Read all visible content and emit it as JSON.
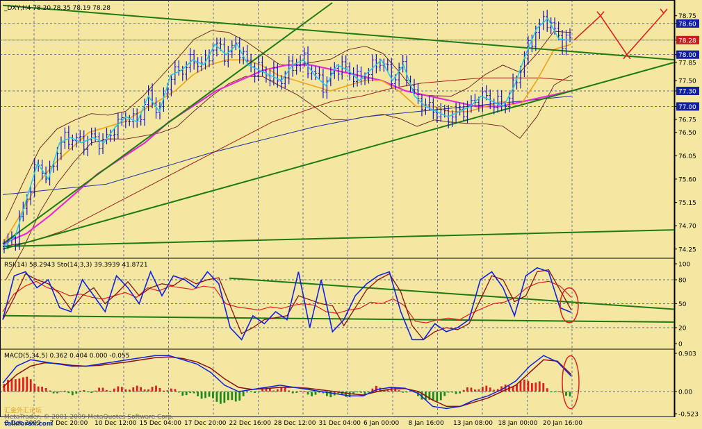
{
  "colors": {
    "background": "#F3E7A1",
    "grid": "#3A3A8A",
    "candles": "#1010D0",
    "fast_ma": "#22C8E8",
    "ma_orange": "#F2A21A",
    "ma_magenta": "#E82BD3",
    "ma_brown": "#A0201A",
    "ma_blue": "#2030A0",
    "bands": "#6A1A1A",
    "trendline": "#1E7A10",
    "projection": "#E02020",
    "price_tag": "#1020A0",
    "current_tag": "#C02020",
    "rsi_line": "#E02020",
    "stoch_main": "#1020E0",
    "stoch_signal": "#8A1010",
    "macd_main": "#1020E0",
    "macd_signal": "#8A1010",
    "hist_up": "#E02020",
    "hist_down": "#1E8A1E",
    "circle": "#E02020"
  },
  "chart_data": [
    {
      "type": "line",
      "title": "_DXY,H4  78.20 78.35 78.19 78.28",
      "ylim": [
        74.1,
        79.0
      ],
      "y_ticks": [
        "78.75",
        "78.60",
        "78.28",
        "78.00",
        "77.85",
        "77.50",
        "77.30",
        "77.00",
        "76.75",
        "76.50",
        "76.05",
        "75.60",
        "75.15",
        "74.70",
        "74.25"
      ],
      "highlighted_ticks": [
        "78.60",
        "78.28",
        "78.00",
        "77.30",
        "77.00"
      ],
      "current_price": "78.28",
      "x_tick_labels": [
        "3 Dec 2009",
        "7 Dec 20:00",
        "10 Dec 12:00",
        "15 Dec 04:00",
        "17 Dec 20:00",
        "22 Dec 16:00",
        "28 Dec 12:00",
        "31 Dec 04:00",
        "6 Jan 00:00",
        "8 Jan 16:00",
        "13 Jan 08:00",
        "18 Jan 00:00",
        "20 Jan 16:00"
      ],
      "close_path": [
        74.3,
        74.5,
        75.2,
        75.9,
        75.6,
        76.3,
        76.4,
        76.3,
        76.4,
        76.3,
        76.6,
        76.8,
        76.7,
        77.2,
        76.9,
        77.6,
        77.7,
        77.9,
        77.8,
        78.2,
        78.0,
        78.2,
        77.8,
        77.7,
        77.6,
        77.5,
        77.8,
        77.9,
        77.6,
        77.4,
        77.8,
        77.7,
        77.5,
        77.7,
        77.9,
        77.5,
        77.8,
        77.2,
        77.0,
        76.9,
        76.8,
        76.9,
        77.0,
        77.2,
        77.1,
        77.0,
        77.4,
        78.0,
        78.5,
        78.7,
        78.3,
        78.28
      ],
      "projection_path": [
        78.28,
        78.75,
        78.0,
        78.8
      ],
      "series": [
        {
          "name": "",
          "values": [
            74.35,
            74.9,
            75.5,
            75.9,
            76.2,
            76.5,
            76.6,
            76.7,
            76.9,
            77.1,
            77.3,
            77.6,
            77.8,
            77.9,
            77.9,
            77.8,
            77.6,
            77.5,
            77.4,
            77.3,
            77.4,
            77.5,
            77.5,
            77.3,
            77.0,
            77.0,
            76.9,
            76.9,
            77.0,
            77.1,
            77.0,
            77.5,
            78.1,
            78.2
          ]
        },
        {
          "name": "",
          "values": [
            74.35,
            74.55,
            74.9,
            75.3,
            75.7,
            76.0,
            76.3,
            76.7,
            77.0,
            77.3,
            77.5,
            77.7,
            77.8,
            77.8,
            77.7,
            77.6,
            77.5,
            77.3,
            77.2,
            77.1,
            77.0,
            77.0,
            77.1,
            77.2,
            77.3
          ]
        },
        {
          "name": "",
          "values": [
            74.3,
            74.4,
            74.6,
            74.9,
            75.2,
            75.5,
            75.8,
            76.1,
            76.4,
            76.7,
            76.9,
            77.1,
            77.2,
            77.35,
            77.45,
            77.5,
            77.55,
            77.55,
            77.55,
            77.5
          ]
        },
        {
          "name": "",
          "values": [
            75.3,
            75.4,
            75.5,
            75.8,
            76.1,
            76.35,
            76.6,
            76.8,
            76.9,
            77.0,
            77.1,
            77.2
          ]
        }
      ]
    },
    {
      "type": "line",
      "title": "RSI(14) 58.2943  Sto(14,3,3) 39.3939 41.8721",
      "ylim": [
        0,
        100
      ],
      "y_ticks": [
        "100",
        "80",
        "50",
        "20",
        "0"
      ],
      "series": [
        {
          "name": "RSI(14)",
          "values": [
            40,
            62,
            72,
            78,
            70,
            66,
            60,
            62,
            58,
            56,
            60,
            64,
            58,
            70,
            66,
            72,
            70,
            68,
            72,
            70,
            50,
            46,
            44,
            42,
            46,
            44,
            48,
            50,
            48,
            40,
            38,
            42,
            44,
            52,
            50,
            56,
            48,
            28,
            26,
            30,
            32,
            30,
            38,
            44,
            50,
            52,
            58,
            70,
            76,
            78,
            72,
            58
          ]
        },
        {
          "name": "Sto(14,3,3)",
          "values": [
            30,
            85,
            90,
            70,
            80,
            45,
            40,
            80,
            60,
            40,
            85,
            70,
            50,
            90,
            60,
            85,
            80,
            70,
            90,
            75,
            20,
            5,
            35,
            25,
            40,
            30,
            90,
            20,
            80,
            15,
            30,
            60,
            75,
            85,
            90,
            40,
            5,
            5,
            25,
            15,
            20,
            30,
            80,
            90,
            70,
            35,
            85,
            95,
            90,
            45,
            39
          ]
        }
      ]
    },
    {
      "type": "bar",
      "title": "MACD(5,34,5)  0.362 0.404 0.000 -0.055",
      "y_ticks": [
        "0.903",
        "0.00",
        "-0.523"
      ],
      "series": [
        {
          "name": "MACD",
          "values": [
            0.2,
            0.6,
            0.75,
            0.7,
            0.65,
            0.6,
            0.6,
            0.65,
            0.7,
            0.75,
            0.8,
            0.85,
            0.85,
            0.75,
            0.65,
            0.45,
            0.15,
            0.0,
            0.05,
            0.1,
            0.15,
            0.1,
            0.05,
            0.0,
            -0.05,
            -0.1,
            -0.1,
            0.05,
            0.1,
            0.08,
            -0.05,
            -0.35,
            -0.4,
            -0.35,
            -0.2,
            -0.1,
            0.05,
            0.25,
            0.6,
            0.85,
            0.7,
            0.36
          ]
        },
        {
          "name": "Signal",
          "values": [
            0.1,
            0.4,
            0.6,
            0.68,
            0.66,
            0.62,
            0.6,
            0.62,
            0.66,
            0.7,
            0.75,
            0.8,
            0.82,
            0.78,
            0.7,
            0.55,
            0.3,
            0.1,
            0.05,
            0.07,
            0.1,
            0.1,
            0.08,
            0.04,
            0.0,
            -0.05,
            -0.08,
            0.0,
            0.06,
            0.07,
            0.0,
            -0.2,
            -0.35,
            -0.35,
            -0.25,
            -0.15,
            0.0,
            0.15,
            0.45,
            0.75,
            0.72,
            0.4
          ]
        }
      ]
    }
  ],
  "watermark": {
    "brand": "汇金外汇论坛",
    "copyright": "MetaTrader, © 2001-2009 MetaQuotes Software Corp.",
    "site": "talkforex.com"
  }
}
